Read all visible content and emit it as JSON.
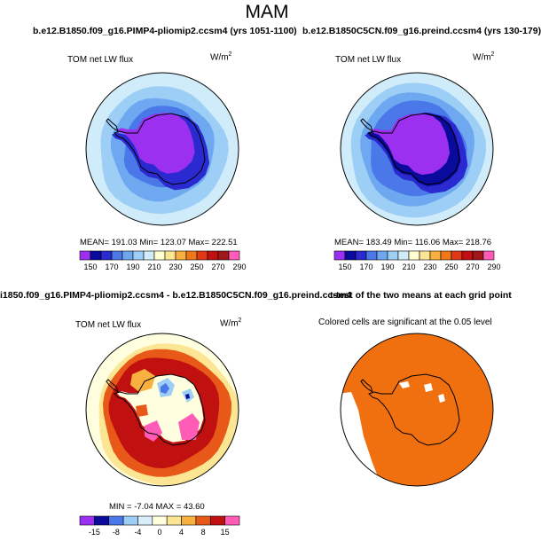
{
  "figure": {
    "title": "MAM"
  },
  "panels": [
    {
      "id": "p1",
      "case": "b.e12.B1850.f09_g16.PIMP4-pliomip2.ccsm4 (yrs 1051-1100)",
      "variable": "TOM net LW flux",
      "units": "W/m",
      "units_exp": "2",
      "stats": "MEAN= 191.03    Min= 123.07    Max= 222.51",
      "colorbar": {
        "ticks": [
          "150",
          "170",
          "190",
          "210",
          "230",
          "250",
          "270",
          "290"
        ],
        "colors": [
          "#9b30f0",
          "#0a0a9c",
          "#2a2ad0",
          "#4a78e8",
          "#6ea8f0",
          "#9ccef6",
          "#d0ecfa",
          "#ffffd0",
          "#fce694",
          "#f8b040",
          "#f07818",
          "#e23818",
          "#c01010",
          "#a01818",
          "#ff5cb8"
        ]
      },
      "map": {
        "mean": 191.03,
        "min": 123.07,
        "max": 222.51
      }
    },
    {
      "id": "p2",
      "case": "b.e12.B1850C5CN.f09_g16.preind.ccsm4 (yrs 130-179)",
      "variable": "TOM net LW flux",
      "units": "W/m",
      "units_exp": "2",
      "stats": "MEAN= 183.49    Min= 116.06    Max= 218.76",
      "colorbar": {
        "ticks": [
          "150",
          "170",
          "190",
          "210",
          "230",
          "250",
          "270",
          "290"
        ],
        "colors": [
          "#9b30f0",
          "#0a0a9c",
          "#2a2ad0",
          "#4a78e8",
          "#6ea8f0",
          "#9ccef6",
          "#d0ecfa",
          "#ffffd0",
          "#fce694",
          "#f8b040",
          "#f07818",
          "#e23818",
          "#c01010",
          "#a01818",
          "#ff5cb8"
        ]
      },
      "map": {
        "mean": 183.49,
        "min": 116.06,
        "max": 218.76
      }
    },
    {
      "id": "p3",
      "case": "i1850.f09_g16.PIMP4-pliomip2.ccsm4 - b.e12.B1850C5CN.f09_g16.preind.ccsm4",
      "variable": "TOM net LW flux",
      "units": "W/m",
      "units_exp": "2",
      "stats": "MIN =  -7.04  MAX =   43.60",
      "colorbar": {
        "ticks": [
          "-15",
          "-8",
          "-4",
          "0",
          "4",
          "8",
          "15"
        ],
        "colors": [
          "#9b30f0",
          "#0a0a9c",
          "#4a78e8",
          "#9ccef6",
          "#d8eefa",
          "#ffffe0",
          "#fce694",
          "#f8b040",
          "#e85818",
          "#c01010",
          "#ff5cb8"
        ]
      },
      "map": {
        "min": -7.04,
        "max": 43.6
      }
    },
    {
      "id": "p4",
      "case": "t-test of the two means at each grid point",
      "variable": "Colored cells are significant at the 0.05 level",
      "significance_color": "#f07010"
    }
  ]
}
